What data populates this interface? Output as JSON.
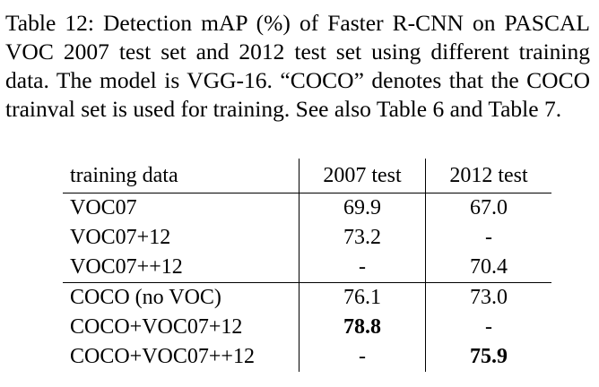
{
  "caption": "Table 12: Detection mAP (%) of Faster R-CNN on PASCAL VOC 2007 test set and 2012 test set using different training data. The model is VGG-16. “COCO” denotes that the COCO trainval set is used for training. See also Table 6 and Table 7.",
  "table": {
    "headers": {
      "training_data": "training data",
      "test_2007": "2007 test",
      "test_2012": "2012 test"
    },
    "group1": [
      {
        "training_data": "VOC07",
        "test_2007": "69.9",
        "test_2012": "67.0"
      },
      {
        "training_data": "VOC07+12",
        "test_2007": "73.2",
        "test_2012": "-"
      },
      {
        "training_data": "VOC07++12",
        "test_2007": "-",
        "test_2012": "70.4"
      }
    ],
    "group2": [
      {
        "training_data": "COCO (no VOC)",
        "test_2007": "76.1",
        "test_2012": "73.0"
      },
      {
        "training_data": "COCO+VOC07+12",
        "test_2007": "78.8",
        "test_2012": "-"
      },
      {
        "training_data": "COCO+VOC07++12",
        "test_2007": "-",
        "test_2012": "75.9"
      }
    ]
  }
}
